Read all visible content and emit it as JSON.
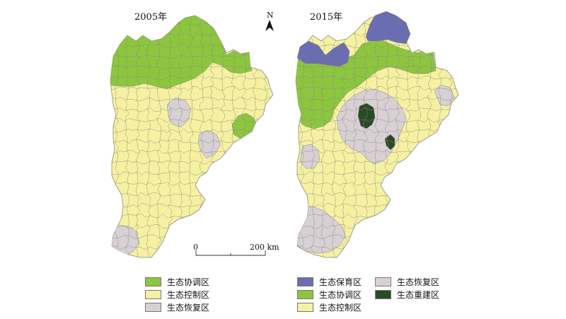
{
  "maps": [
    {
      "title": "2005年"
    },
    {
      "title": "2015年"
    }
  ],
  "north_arrow": {
    "label": "N"
  },
  "scale_bar": {
    "start_label": "0",
    "end_label": "200 km"
  },
  "colors": {
    "conservation": "#6a6eb0",
    "coordination": "#8cc63f",
    "control": "#f6f1a2",
    "restoration": "#d8d0d5",
    "reconstruction": "#2a4a26",
    "boundary": "#8a8a7a"
  },
  "legend_2005": [
    {
      "key": "coordination",
      "label": "生态协调区"
    },
    {
      "key": "control",
      "label": "生态控制区"
    },
    {
      "key": "restoration",
      "label": "生态恢复区"
    }
  ],
  "legend_2015_col1": [
    {
      "key": "conservation",
      "label": "生态保育区"
    },
    {
      "key": "coordination",
      "label": "生态协调区"
    },
    {
      "key": "control",
      "label": "生态控制区"
    }
  ],
  "legend_2015_col2": [
    {
      "key": "restoration",
      "label": "生态恢复区"
    },
    {
      "key": "reconstruction",
      "label": "生态重建区"
    }
  ]
}
